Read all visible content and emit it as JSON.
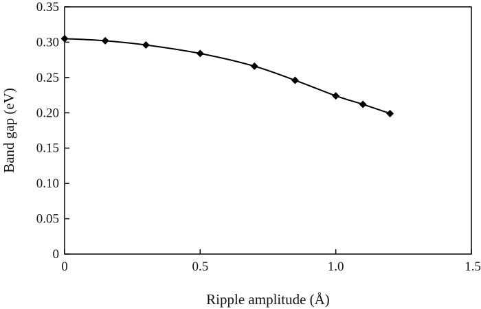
{
  "chart_data": {
    "type": "line",
    "title": "",
    "xlabel": "Ripple amplitude (Å)",
    "ylabel": "Band gap (eV)",
    "xlim": [
      0,
      1.5
    ],
    "ylim": [
      0,
      0.35
    ],
    "x_ticks": [
      "0",
      "0.5",
      "1.0",
      "1.5"
    ],
    "y_ticks": [
      "0",
      "0.05",
      "0.10",
      "0.15",
      "0.20",
      "0.25",
      "0.30",
      "0.35"
    ],
    "grid": false,
    "legend": "none",
    "series": [
      {
        "marker": "diamond",
        "color": "#000000",
        "x": [
          0,
          0.15,
          0.3,
          0.5,
          0.7,
          0.85,
          1.0,
          1.1,
          1.2
        ],
        "y": [
          0.305,
          0.302,
          0.296,
          0.284,
          0.266,
          0.246,
          0.224,
          0.212,
          0.199
        ]
      }
    ]
  }
}
